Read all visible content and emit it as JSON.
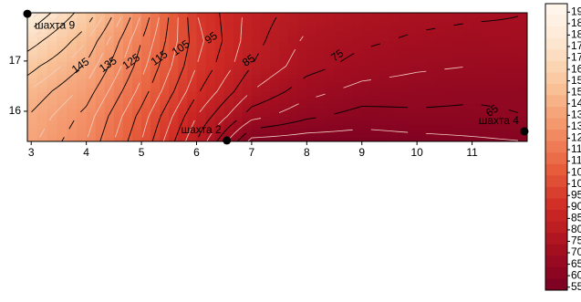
{
  "chart_data": {
    "type": "contour",
    "x": [
      2.93,
      4,
      5,
      6,
      7,
      8,
      9,
      10,
      11,
      12
    ],
    "y": [
      15.4,
      15.9,
      16.4,
      16.9,
      17.4,
      17.96
    ],
    "z": [
      [
        142,
        130,
        110,
        85,
        58,
        57,
        57,
        58,
        59,
        60
      ],
      [
        145,
        133,
        113,
        90,
        72,
        66,
        63,
        64,
        64,
        65
      ],
      [
        150,
        138,
        118,
        96,
        80,
        72,
        68,
        67,
        66,
        66
      ],
      [
        158,
        144,
        122,
        100,
        85,
        77,
        73,
        71,
        70,
        70
      ],
      [
        170,
        150,
        125,
        102,
        87,
        79,
        76,
        74,
        73,
        74
      ],
      [
        185,
        160,
        130,
        100,
        88,
        82,
        79,
        77,
        76,
        75
      ]
    ],
    "xlim": [
      2.93,
      12.0
    ],
    "ylim": [
      15.4,
      17.96
    ],
    "xticks": [
      3,
      4,
      5,
      6,
      7,
      8,
      9,
      10,
      11
    ],
    "yticks": [
      16,
      17
    ],
    "zlim": [
      55,
      195
    ],
    "colormap": [
      "#7a0022",
      "#a50f20",
      "#cf2a24",
      "#e8603e",
      "#f4956b",
      "#f9c49a",
      "#fde6cf",
      "#fff8ef"
    ],
    "contour_levels": [
      65,
      75,
      85,
      95,
      105,
      115,
      125,
      135,
      145,
      155,
      165,
      175
    ],
    "contour_color": "#000000",
    "minor_levels": [
      60,
      70,
      80,
      90,
      100,
      110,
      120,
      130,
      140,
      150,
      160,
      170,
      180
    ],
    "minor_color": "#f2d0c4",
    "contour_labels": [
      {
        "value": 145,
        "x": 3.9,
        "y": 16.9
      },
      {
        "value": 135,
        "x": 4.4,
        "y": 16.92
      },
      {
        "value": 125,
        "x": 4.82,
        "y": 16.98
      },
      {
        "value": 115,
        "x": 5.33,
        "y": 17.05
      },
      {
        "value": 105,
        "x": 5.72,
        "y": 17.25
      },
      {
        "value": 95,
        "x": 6.27,
        "y": 17.45
      },
      {
        "value": 85,
        "x": 6.95,
        "y": 17.0
      },
      {
        "value": 75,
        "x": 8.56,
        "y": 17.1
      },
      {
        "value": 65,
        "x": 11.37,
        "y": 16.0
      }
    ],
    "points": [
      {
        "name": "шахта 9",
        "x": 2.93,
        "y": 17.94
      },
      {
        "name": "шахта 2",
        "x": 6.55,
        "y": 15.42
      },
      {
        "name": "шахта 4",
        "x": 11.95,
        "y": 15.6
      }
    ],
    "point_color": "#000000",
    "colorbar_labels": [
      "19",
      "18",
      "18",
      "17",
      "17",
      "16",
      "15",
      "15",
      "14",
      "13",
      "13",
      "12",
      "11",
      "11",
      "10",
      "10",
      "95",
      "90",
      "85",
      "80",
      "75",
      "70",
      "65",
      "60",
      "55"
    ]
  }
}
